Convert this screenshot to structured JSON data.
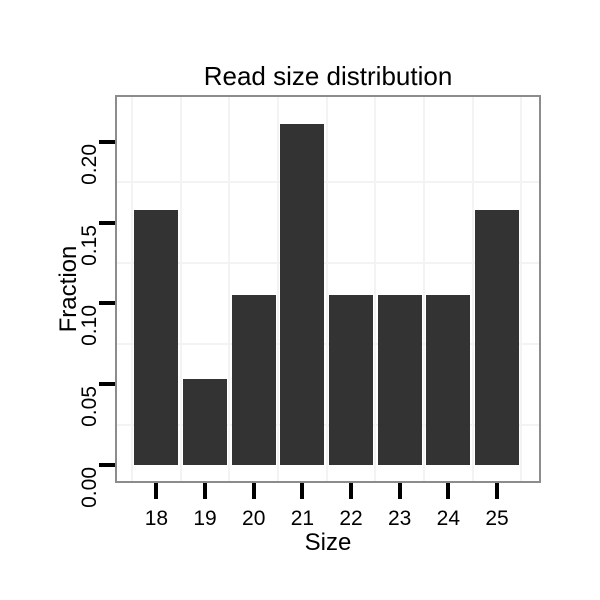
{
  "chart_data": {
    "type": "bar",
    "title": "Read size distribution",
    "xlabel": "Size",
    "ylabel": "Fraction",
    "categories": [
      "18",
      "19",
      "20",
      "21",
      "22",
      "23",
      "24",
      "25"
    ],
    "values": [
      0.158,
      0.053,
      0.105,
      0.211,
      0.105,
      0.105,
      0.105,
      0.158
    ],
    "y_ticks": [
      {
        "value": 0.0,
        "label": "0.00"
      },
      {
        "value": 0.05,
        "label": "0.05"
      },
      {
        "value": 0.1,
        "label": "0.10"
      },
      {
        "value": 0.15,
        "label": "0.15"
      },
      {
        "value": 0.2,
        "label": "0.20"
      }
    ],
    "ylim": [
      -0.01,
      0.228
    ],
    "grid": "minor gridlines only, between ticks on both axes",
    "legend_position": "none",
    "axis_text_rotation": {
      "y": -90,
      "x": 0
    },
    "colors": {
      "bar": "#333333",
      "panel_border": "#8c8c8c",
      "grid": "#f3f3f3",
      "tick": "#000000",
      "text": "#000000",
      "background": "#ffffff"
    }
  }
}
